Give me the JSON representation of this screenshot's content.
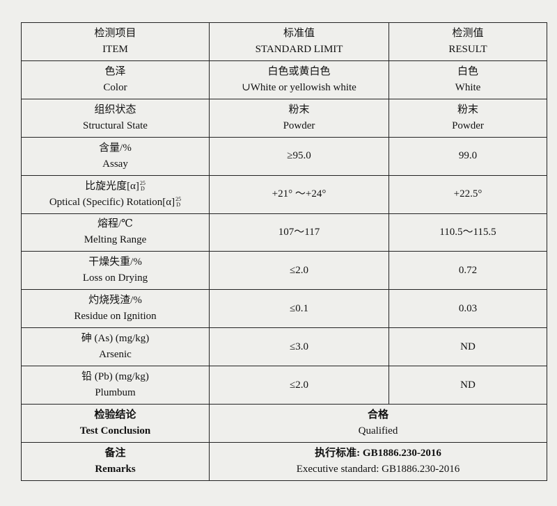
{
  "table": {
    "header": {
      "item": [
        "检测项目",
        "ITEM"
      ],
      "standard": [
        "标准值",
        "STANDARD LIMIT"
      ],
      "result": [
        "检测值",
        "RESULT"
      ]
    },
    "rows": [
      {
        "item": [
          "色泽",
          "Color"
        ],
        "standard": [
          "白色或黄白色",
          "∪White or yellowish white"
        ],
        "result": [
          "白色",
          "White"
        ]
      },
      {
        "item": [
          "组织状态",
          "Structural State"
        ],
        "standard": [
          "粉末",
          "Powder"
        ],
        "result": [
          "粉末",
          "Powder"
        ]
      },
      {
        "item": [
          "含量/%",
          "Assay"
        ],
        "standard": [
          "≥95.0"
        ],
        "result": [
          "99.0"
        ]
      },
      {
        "item": [
          {
            "text": "比旋光度[α]",
            "sup": "25",
            "sub": "D"
          },
          {
            "text": "Optical (Specific) Rotation[α]",
            "sup": "25",
            "sub": "D"
          }
        ],
        "standard": [
          "+21° ～+24°"
        ],
        "result": [
          "+22.5°"
        ]
      },
      {
        "item": [
          "熔程/℃",
          "Melting Range"
        ],
        "standard": [
          "107～117"
        ],
        "result": [
          "110.5～115.5"
        ]
      },
      {
        "item": [
          "干燥失重/%",
          "Loss on Drying"
        ],
        "standard": [
          "≤2.0"
        ],
        "result": [
          "0.72"
        ]
      },
      {
        "item": [
          "灼烧残渣/%",
          "Residue on Ignition"
        ],
        "standard": [
          "≤0.1"
        ],
        "result": [
          "0.03"
        ]
      },
      {
        "item": [
          "砷 (As) (mg/kg)",
          "Arsenic"
        ],
        "standard": [
          "≤3.0"
        ],
        "result": [
          "ND"
        ]
      },
      {
        "item": [
          "铅 (Pb) (mg/kg)",
          "Plumbum"
        ],
        "standard": [
          "≤2.0"
        ],
        "result": [
          "ND"
        ]
      },
      {
        "item": [
          "检验结论",
          "Test Conclusion"
        ],
        "value": [
          "合格",
          "Qualified"
        ]
      },
      {
        "item": [
          "备注",
          "Remarks"
        ],
        "value": [
          "执行标准: GB1886.230-2016",
          "Executive standard: GB1886.230-2016"
        ]
      }
    ]
  }
}
